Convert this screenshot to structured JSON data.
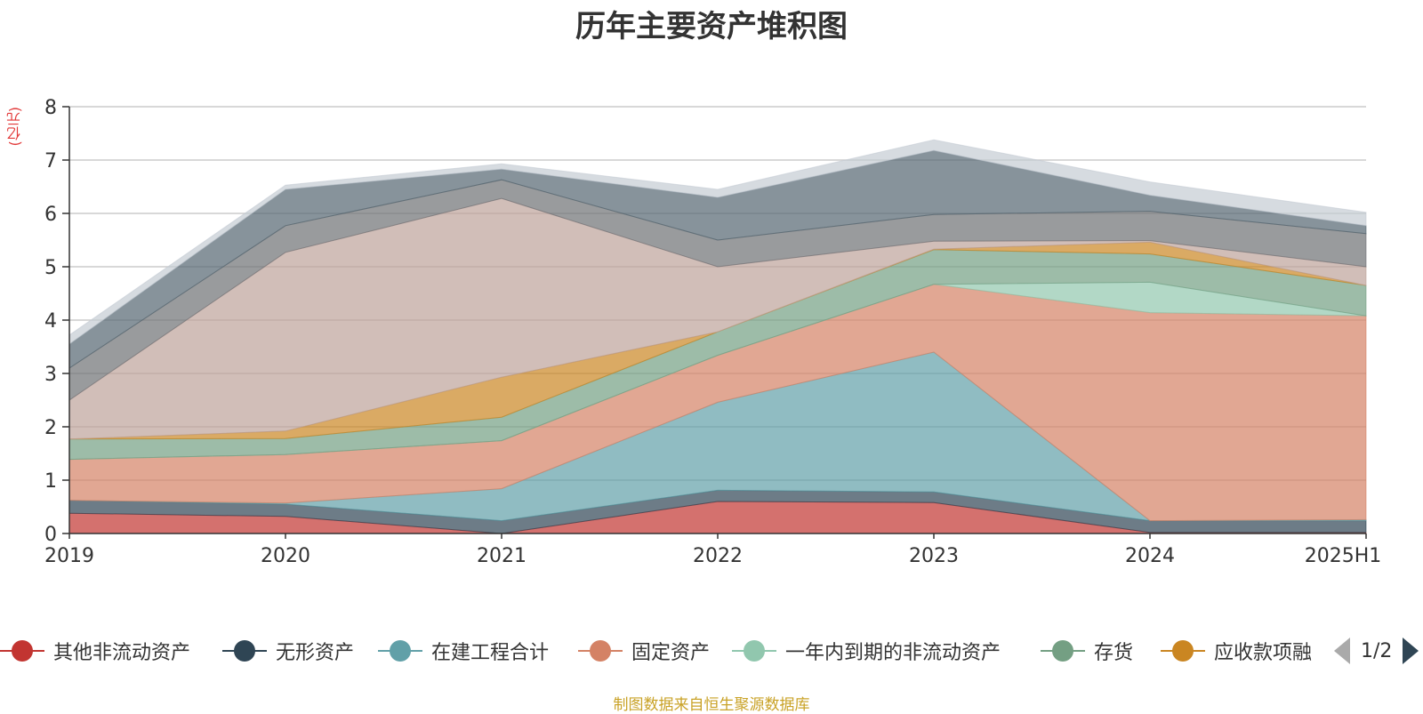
{
  "title": "历年主要资产堆积图",
  "unit_label": "(亿元)",
  "source": "制图数据来自恒生聚源数据库",
  "pager": {
    "text": "1/2"
  },
  "chart_data": {
    "type": "area",
    "stacked": true,
    "title": "历年主要资产堆积图",
    "ylabel": "(亿元)",
    "xlabel": "",
    "categories": [
      "2019",
      "2020",
      "2021",
      "2022",
      "2023",
      "2024",
      "2025H1"
    ],
    "ylim": [
      0,
      8
    ],
    "yticks": [
      0,
      1,
      2,
      3,
      4,
      5,
      6,
      7,
      8
    ],
    "grid": true,
    "legend_position": "bottom",
    "series": [
      {
        "name": "其他非流动资产",
        "color": "#c23531",
        "values": [
          0.38,
          0.32,
          0.0,
          0.6,
          0.58,
          0.02,
          0.02
        ]
      },
      {
        "name": "无形资产",
        "color": "#2f4554",
        "values": [
          0.24,
          0.23,
          0.24,
          0.21,
          0.2,
          0.22,
          0.22
        ]
      },
      {
        "name": "在建工程合计",
        "color": "#61a0a8",
        "values": [
          0.0,
          0.02,
          0.6,
          1.65,
          2.62,
          0.0,
          0.02
        ]
      },
      {
        "name": "固定资产",
        "color": "#d48265",
        "values": [
          0.77,
          0.91,
          0.9,
          0.88,
          1.27,
          3.9,
          3.82
        ]
      },
      {
        "name": "一年内到期的非流动资产",
        "color": "#91c7ae",
        "values": [
          0.0,
          0.0,
          0.0,
          0.0,
          0.0,
          0.57,
          0.0
        ]
      },
      {
        "name": "存货",
        "color": "#749f83",
        "values": [
          0.38,
          0.3,
          0.44,
          0.44,
          0.65,
          0.53,
          0.57
        ]
      },
      {
        "name": "应收款项融",
        "color": "#ca8622",
        "values": [
          0.0,
          0.14,
          0.75,
          0.0,
          0.01,
          0.22,
          0.0
        ]
      },
      {
        "name": "",
        "color": "#bda29a",
        "values": [
          0.73,
          3.35,
          3.35,
          1.22,
          0.15,
          0.03,
          0.35
        ]
      },
      {
        "name": "",
        "color": "#6e7074",
        "values": [
          0.6,
          0.5,
          0.35,
          0.5,
          0.5,
          0.55,
          0.62
        ]
      },
      {
        "name": "",
        "color": "#546570",
        "values": [
          0.45,
          0.68,
          0.2,
          0.8,
          1.2,
          0.3,
          0.15
        ]
      },
      {
        "name": "",
        "color": "#c4ccd3",
        "values": [
          0.17,
          0.08,
          0.1,
          0.15,
          0.2,
          0.25,
          0.25
        ]
      }
    ]
  }
}
